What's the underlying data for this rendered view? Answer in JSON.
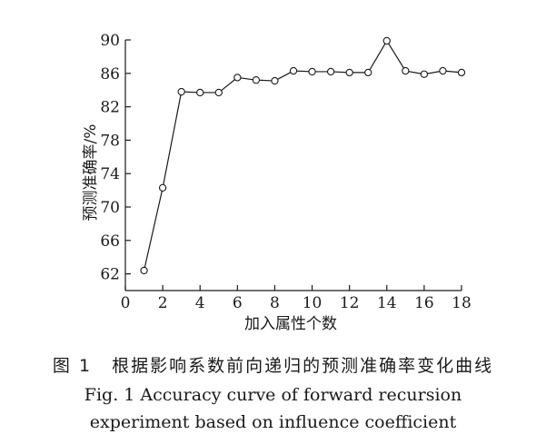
{
  "chart_data": {
    "type": "line",
    "x": [
      1,
      2,
      3,
      4,
      5,
      6,
      7,
      8,
      9,
      10,
      11,
      12,
      13,
      14,
      15,
      16,
      17,
      18
    ],
    "series": [
      {
        "values": [
          62.4,
          72.3,
          83.8,
          83.7,
          83.7,
          85.5,
          85.2,
          85.1,
          86.3,
          86.2,
          86.2,
          86.1,
          86.1,
          89.9,
          86.3,
          85.9,
          86.3,
          86.1
        ]
      }
    ],
    "xlabel": "加入属性个数",
    "ylabel": "预测准确率/%",
    "xlim": [
      0,
      18
    ],
    "ylim": [
      60,
      90
    ],
    "xticks": [
      0,
      2,
      4,
      6,
      8,
      10,
      12,
      14,
      16,
      18
    ],
    "yticks": [
      62,
      66,
      70,
      74,
      78,
      82,
      86,
      90
    ],
    "grid": false,
    "marker": "open-circle",
    "line_color": "#1a1a1a"
  },
  "caption": {
    "cn_number": "图 1",
    "cn_text": "根据影响系数前向递归的预测准确率变化曲线",
    "en_line1": "Fig. 1  Accuracy curve of forward recursion",
    "en_line2": "experiment based on influence coefficient"
  }
}
